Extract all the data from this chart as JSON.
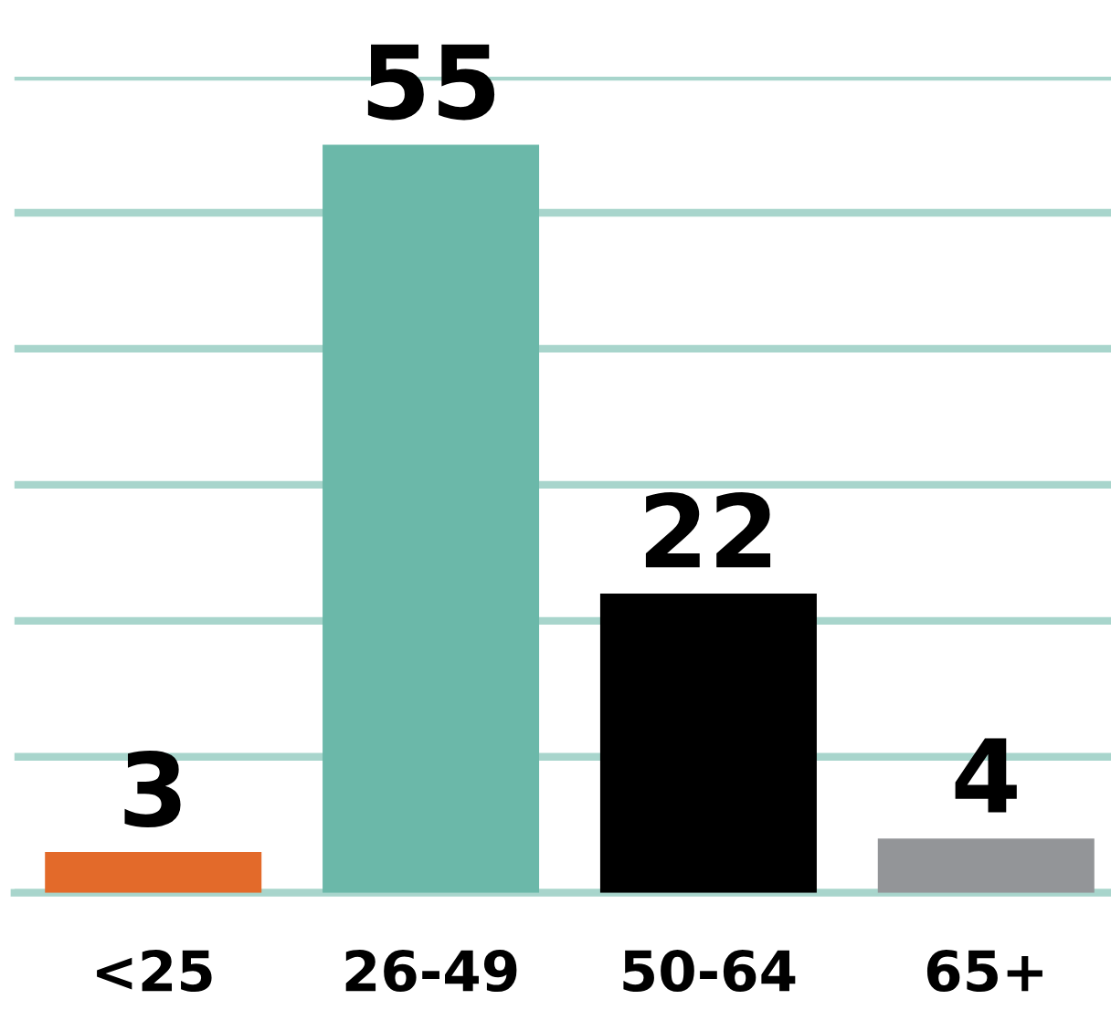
{
  "chart_data": {
    "type": "bar",
    "categories": [
      "<25",
      "26-49",
      "50-64",
      "65+"
    ],
    "values": [
      3,
      55,
      22,
      4
    ],
    "colors": [
      "#e36a2a",
      "#6bb8a9",
      "#000000",
      "#939598"
    ],
    "ylim": [
      0,
      60
    ],
    "yticks": [
      {
        "value": 0,
        "label": null
      },
      {
        "value": 10,
        "label": null
      },
      {
        "value": 20,
        "label": null
      },
      {
        "value": 30,
        "label": null
      },
      {
        "value": 40,
        "label": null
      },
      {
        "value": 50,
        "label": null
      },
      {
        "value": 60,
        "label": null
      }
    ],
    "tick_labels": "x",
    "grid": "y",
    "data_labels": true
  }
}
